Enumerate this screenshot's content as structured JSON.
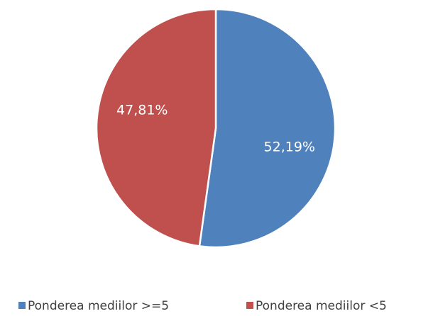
{
  "chart_data": {
    "type": "pie",
    "categories": [
      "Ponderea mediilor >=5",
      "Ponderea mediilor <5"
    ],
    "values": [
      52.19,
      47.81
    ],
    "value_labels": [
      "52,19%",
      "47,81%"
    ],
    "colors": [
      "#4f81bd",
      "#c0504d"
    ],
    "legend": "bottom"
  }
}
